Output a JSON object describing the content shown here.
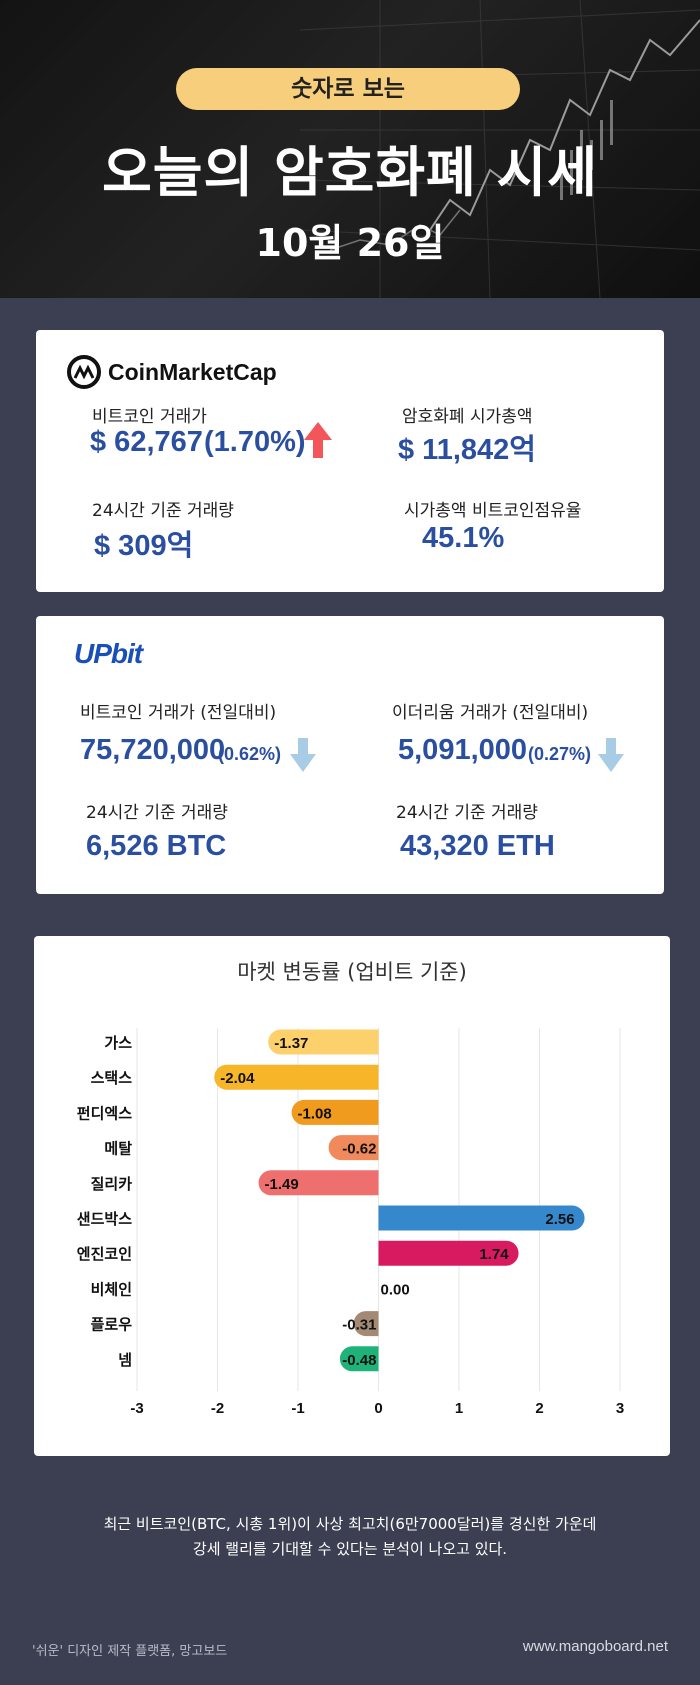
{
  "header": {
    "pill": "숫자로 보는",
    "title": "오늘의 암호화폐 시세",
    "date": "10월 26일"
  },
  "coinmarketcap": {
    "logo_text": "CoinMarketCap",
    "btc_price_label": "비트코인 거래가",
    "btc_price": "$ 62,767",
    "btc_change": "(1.70%)",
    "market_cap_label": "암호화폐 시가총액",
    "market_cap": "$ 11,842억",
    "volume_label": "24시간 기준 거래량",
    "volume": "$ 309억",
    "dominance_label": "시가총액 비트코인점유율",
    "dominance": "45.1%",
    "up_color": "#f2565a"
  },
  "upbit": {
    "logo_text": "UPbit",
    "btc_label": "비트코인 거래가 (전일대비)",
    "btc_price": "75,720,000",
    "btc_change": "(0.62%)",
    "eth_label": "이더리움 거래가 (전일대비)",
    "eth_price": "5,091,000",
    "eth_change": "(0.27%)",
    "btc_volume_label": "24시간 기준 거래량",
    "btc_volume": "6,526 BTC",
    "eth_volume_label": "24시간 기준 거래량",
    "eth_volume": "43,320 ETH",
    "down_color": "#a8cbe6"
  },
  "chart_data": {
    "type": "bar",
    "orientation": "horizontal",
    "title": "마켓 변동률 (업비트 기준)",
    "categories": [
      "가스",
      "스택스",
      "펀디엑스",
      "메탈",
      "질리카",
      "샌드박스",
      "엔진코인",
      "비체인",
      "플로우",
      "넴"
    ],
    "values": [
      -1.37,
      -2.04,
      -1.08,
      -0.62,
      -1.49,
      2.56,
      1.74,
      0.0,
      -0.31,
      -0.48
    ],
    "value_labels": [
      "-1.37",
      "-2.04",
      "-1.08",
      "-0.62",
      "-1.49",
      "2.56",
      "1.74",
      "0.00",
      "-0.31",
      "-0.48"
    ],
    "colors": [
      "#fcd16c",
      "#f7b52a",
      "#f09a1e",
      "#f08a5a",
      "#ef6e6e",
      "#3688cc",
      "#d81b60",
      "#999999",
      "#a48a74",
      "#1fb37a"
    ],
    "xlim": [
      -3,
      3
    ],
    "xticks": [
      "-3",
      "-2",
      "-1",
      "0",
      "1",
      "2",
      "3"
    ],
    "grid": true
  },
  "footer": {
    "line1": "최근 비트코인(BTC, 시총 1위)이 사상 최고치(6만7000달러)를 경신한 가운데",
    "line2": "강세 랠리를 기대할 수 있다는 분석이 나오고 있다.",
    "credit": "'쉬운' 디자인 제작 플랫폼, 망고보드",
    "site": "www.mangoboard.net"
  }
}
